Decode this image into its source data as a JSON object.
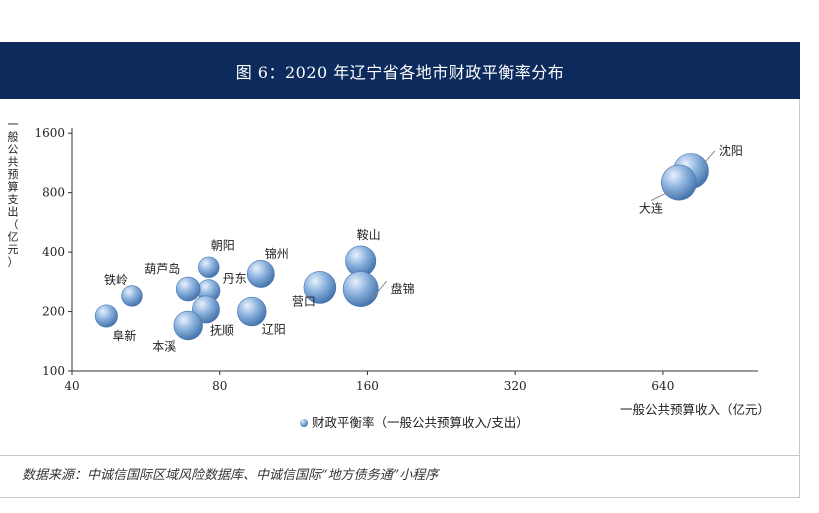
{
  "header": {
    "title": "图 6：2020 年辽宁省各地市财政平衡率分布"
  },
  "footer": {
    "source": "数据来源：中诚信国际区域风险数据库、中诚信国际“地方债务通”小程序"
  },
  "chart_data": {
    "type": "scatter",
    "title": "",
    "xlabel": "一般公共预算收入（亿元）",
    "ylabel": "一般公共预算支出（亿元）",
    "xscale": "log",
    "yscale": "log",
    "xlim": [
      40,
      1000
    ],
    "ylim": [
      100,
      1700
    ],
    "xticks": [
      40,
      80,
      160,
      320,
      640
    ],
    "yticks": [
      100,
      200,
      400,
      800,
      1600
    ],
    "grid": false,
    "legend": {
      "position": "bottom",
      "entries": [
        "财政平衡率（一般公共预算收入/支出）"
      ]
    },
    "bubble_color": "#6f9bd0",
    "series": [
      {
        "name": "财政平衡率（一般公共预算收入/支出）",
        "points": [
          {
            "label": "沈阳",
            "x": 730,
            "y": 1030,
            "size": 1.1
          },
          {
            "label": "大连",
            "x": 690,
            "y": 900,
            "size": 1.1
          },
          {
            "label": "鞍山",
            "x": 155,
            "y": 360,
            "size": 0.95
          },
          {
            "label": "盘锦",
            "x": 155,
            "y": 260,
            "size": 1.1
          },
          {
            "label": "营口",
            "x": 128,
            "y": 265,
            "size": 1.0
          },
          {
            "label": "锦州",
            "x": 97,
            "y": 310,
            "size": 0.85
          },
          {
            "label": "辽阳",
            "x": 93,
            "y": 200,
            "size": 0.9
          },
          {
            "label": "朝阳",
            "x": 76,
            "y": 335,
            "size": 0.65
          },
          {
            "label": "丹东",
            "x": 76,
            "y": 255,
            "size": 0.7
          },
          {
            "label": "抚顺",
            "x": 75,
            "y": 205,
            "size": 0.85
          },
          {
            "label": "葫芦岛",
            "x": 69,
            "y": 260,
            "size": 0.75
          },
          {
            "label": "本溪",
            "x": 69,
            "y": 170,
            "size": 0.9
          },
          {
            "label": "铁岭",
            "x": 53,
            "y": 240,
            "size": 0.65
          },
          {
            "label": "阜新",
            "x": 47,
            "y": 190,
            "size": 0.7
          }
        ]
      }
    ]
  }
}
